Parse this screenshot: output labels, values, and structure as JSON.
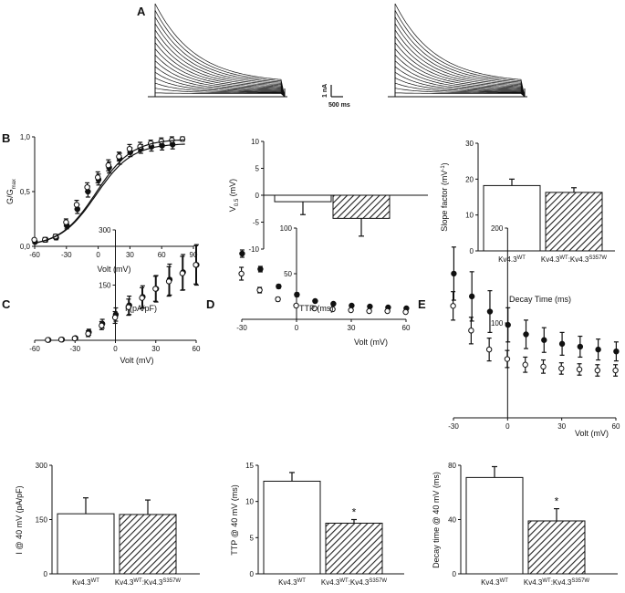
{
  "panel_labels": [
    "A",
    "B",
    "C",
    "D",
    "E"
  ],
  "scalebar": {
    "current": "1 nA",
    "time": "500 ms"
  },
  "colors": {
    "ink": "#111111",
    "wt_fill": "#ffffff",
    "mut_hatch": "#222222"
  },
  "chart_data": [
    {
      "id": "A-traces-wt",
      "type": "line",
      "title": "",
      "xlabel": "",
      "ylabel": "",
      "series": [
        {
          "name": "Kv4.3 WT current traces",
          "n_sweeps": 16
        }
      ]
    },
    {
      "id": "A-traces-mut",
      "type": "line",
      "title": "",
      "xlabel": "",
      "ylabel": "",
      "series": [
        {
          "name": "Kv4.3 WT:Kv4.3 S357W current traces",
          "n_sweeps": 16
        }
      ]
    },
    {
      "id": "B1",
      "type": "scatter",
      "xlabel": "Volt (mV)",
      "ylabel_main": "G/G",
      "ylabel_sub": "max",
      "xlim": [
        -60,
        90
      ],
      "ylim": [
        0,
        1
      ],
      "xticks": [
        "-60",
        "-30",
        "0",
        "30",
        "60",
        "90"
      ],
      "yticks": [
        "0,0",
        "0,5",
        "1,0"
      ],
      "series": [
        {
          "name": "WT",
          "marker": "filled",
          "x": [
            -60,
            -50,
            -40,
            -30,
            -20,
            -10,
            0,
            10,
            20,
            30,
            40,
            50,
            60,
            70
          ],
          "y": [
            0.04,
            0.06,
            0.08,
            0.19,
            0.34,
            0.5,
            0.61,
            0.72,
            0.8,
            0.86,
            0.89,
            0.91,
            0.92,
            0.93
          ],
          "err": [
            0.01,
            0.02,
            0.02,
            0.03,
            0.04,
            0.05,
            0.05,
            0.05,
            0.05,
            0.04,
            0.04,
            0.04,
            0.04,
            0.04
          ]
        },
        {
          "name": "Mut",
          "marker": "open",
          "x": [
            -60,
            -50,
            -40,
            -30,
            -20,
            -10,
            0,
            10,
            20,
            30,
            40,
            50,
            60,
            70,
            80
          ],
          "y": [
            0.06,
            0.06,
            0.09,
            0.22,
            0.38,
            0.54,
            0.63,
            0.74,
            0.82,
            0.89,
            0.91,
            0.94,
            0.96,
            0.97,
            0.98
          ],
          "err": [
            0.01,
            0.02,
            0.02,
            0.03,
            0.04,
            0.04,
            0.05,
            0.05,
            0.04,
            0.04,
            0.04,
            0.03,
            0.03,
            0.03,
            0.02
          ]
        }
      ],
      "fit": {
        "v05": -2,
        "k": 17
      }
    },
    {
      "id": "B2",
      "type": "bar",
      "ylabel_main": "V",
      "ylabel_sub": "0.5",
      "ylabel_unit": " (mV)",
      "ylim": [
        -10,
        10
      ],
      "yticks": [
        "10",
        "5",
        "0",
        "-5",
        "-10"
      ],
      "categories": [
        "WT",
        "Mut"
      ],
      "values": [
        -1.2,
        -4.3
      ],
      "errors": [
        2.4,
        3.3
      ]
    },
    {
      "id": "B3",
      "type": "bar",
      "ylabel_main": "Slope factor (mV",
      "ylabel_sup": "-1",
      "ylabel_end": ")",
      "ylim": [
        0,
        30
      ],
      "yticks": [
        "30",
        "20",
        "10",
        "0"
      ],
      "categories": [
        "Kv4.3WT",
        "Kv4.3WT:Kv4.3S357W"
      ],
      "category_labels": [
        {
          "base": "Kv4.3",
          "sup": "WT"
        },
        {
          "base": "Kv4.3",
          "sup": "WT",
          "mid": ":Kv4.3",
          "sup2": "S357W"
        }
      ],
      "values": [
        18.2,
        16.3
      ],
      "errors": [
        1.8,
        1.3
      ]
    },
    {
      "id": "C1",
      "type": "scatter",
      "xlabel": "Volt (mV)",
      "ylabel": "I (pA/pF)",
      "xlim": [
        -60,
        60
      ],
      "ylim": [
        0,
        300
      ],
      "xticks": [
        "-60",
        "-30",
        "0",
        "30",
        "60"
      ],
      "yticks": [
        "300",
        "150"
      ],
      "series": [
        {
          "name": "WT",
          "marker": "filled",
          "x": [
            -50,
            -40,
            -30,
            -20,
            -10,
            0,
            10,
            20,
            30,
            40,
            50,
            60
          ],
          "y": [
            1,
            2,
            6,
            22,
            45,
            70,
            95,
            118,
            140,
            165,
            185,
            205
          ],
          "err": [
            1,
            2,
            4,
            8,
            12,
            18,
            25,
            30,
            36,
            42,
            48,
            55
          ]
        },
        {
          "name": "Mut",
          "marker": "open",
          "x": [
            -50,
            -40,
            -30,
            -20,
            -10,
            0,
            10,
            20,
            30,
            40,
            50,
            60
          ],
          "y": [
            1,
            2,
            5,
            18,
            40,
            62,
            90,
            115,
            140,
            160,
            182,
            205
          ],
          "err": [
            1,
            2,
            4,
            8,
            11,
            16,
            22,
            28,
            34,
            40,
            46,
            52
          ]
        }
      ]
    },
    {
      "id": "D1",
      "type": "scatter",
      "xlabel": "Volt (mV)",
      "ylabel": "TTP (ms)",
      "xlim": [
        -30,
        60
      ],
      "ylim": [
        0,
        100
      ],
      "xticks": [
        "-30",
        "0",
        "30",
        "60"
      ],
      "yticks": [
        "100",
        "50"
      ],
      "series": [
        {
          "name": "WT",
          "marker": "filled",
          "x": [
            -30,
            -20,
            -10,
            0,
            10,
            20,
            30,
            40,
            50,
            60
          ],
          "y": [
            72,
            55,
            36,
            27,
            20,
            17,
            15,
            14,
            13,
            12
          ],
          "err": [
            4,
            3,
            2,
            2,
            1.5,
            1,
            1,
            1,
            1,
            1
          ]
        },
        {
          "name": "Mut",
          "marker": "open",
          "x": [
            -30,
            -20,
            -10,
            0,
            10,
            20,
            30,
            40,
            50,
            60
          ],
          "y": [
            50,
            32,
            22,
            15,
            12,
            11,
            10,
            9,
            9,
            8
          ],
          "err": [
            7,
            3,
            2,
            1.5,
            1,
            1,
            1,
            1,
            1,
            1
          ]
        }
      ]
    },
    {
      "id": "E1",
      "type": "scatter",
      "xlabel": "Volt (mV)",
      "ylabel": "Decay Time (ms)",
      "xlim": [
        -30,
        60
      ],
      "ylim": [
        0,
        200
      ],
      "xticks": [
        "-30",
        "0",
        "30",
        "60"
      ],
      "yticks": [
        "200",
        "100"
      ],
      "series": [
        {
          "name": "WT",
          "marker": "filled",
          "x": [
            -30,
            -20,
            -10,
            0,
            10,
            20,
            30,
            40,
            50,
            60
          ],
          "y": [
            152,
            128,
            112,
            98,
            88,
            82,
            78,
            75,
            72,
            70
          ],
          "err": [
            28,
            26,
            22,
            18,
            15,
            13,
            12,
            11,
            11,
            10
          ]
        },
        {
          "name": "Mut",
          "marker": "open",
          "x": [
            -30,
            -20,
            -10,
            0,
            10,
            20,
            30,
            40,
            50,
            60
          ],
          "y": [
            118,
            92,
            72,
            62,
            56,
            54,
            52,
            51,
            50,
            50
          ],
          "err": [
            15,
            14,
            12,
            9,
            8,
            7,
            6,
            6,
            6,
            6
          ]
        }
      ]
    },
    {
      "id": "C2",
      "type": "bar",
      "ylabel": "I @ 40 mV (pA/pF)",
      "ylim": [
        0,
        300
      ],
      "yticks": [
        "300",
        "150",
        "0"
      ],
      "categories": [
        "Kv4.3WT",
        "Kv4.3WT:Kv4.3S357W"
      ],
      "category_labels": [
        {
          "base": "Kv4.3",
          "sup": "WT"
        },
        {
          "base": "Kv4.3",
          "sup": "WT",
          "mid": ":Kv4.3",
          "sup2": "S357W"
        }
      ],
      "values": [
        166,
        164
      ],
      "errors": [
        44,
        40
      ]
    },
    {
      "id": "D2",
      "type": "bar",
      "ylabel": "TTP @ 40 mV (ms)",
      "ylim": [
        0,
        15
      ],
      "yticks": [
        "15",
        "10",
        "5",
        "0"
      ],
      "categories": [
        "Kv4.3WT",
        "Kv4.3WT:Kv4.3S357W"
      ],
      "category_labels": [
        {
          "base": "Kv4.3",
          "sup": "WT"
        },
        {
          "base": "Kv4.3",
          "sup": "WT",
          "mid": ":Kv4.3",
          "sup2": "S357W"
        }
      ],
      "values": [
        12.8,
        7.0
      ],
      "errors": [
        1.2,
        0.5
      ],
      "annotations": [
        "",
        "*"
      ]
    },
    {
      "id": "E2",
      "type": "bar",
      "ylabel": "Decay time @ 40 mV (ms)",
      "ylim": [
        0,
        80
      ],
      "yticks": [
        "80",
        "40",
        "0"
      ],
      "categories": [
        "Kv4.3WT",
        "Kv4.3WT:Kv4.3S357W"
      ],
      "category_labels": [
        {
          "base": "Kv4.3",
          "sup": "WT"
        },
        {
          "base": "Kv4.3",
          "sup": "WT",
          "mid": ":Kv4.3",
          "sup2": "S357W"
        }
      ],
      "values": [
        71,
        39
      ],
      "errors": [
        8,
        9
      ],
      "annotations": [
        "",
        "*"
      ]
    }
  ]
}
